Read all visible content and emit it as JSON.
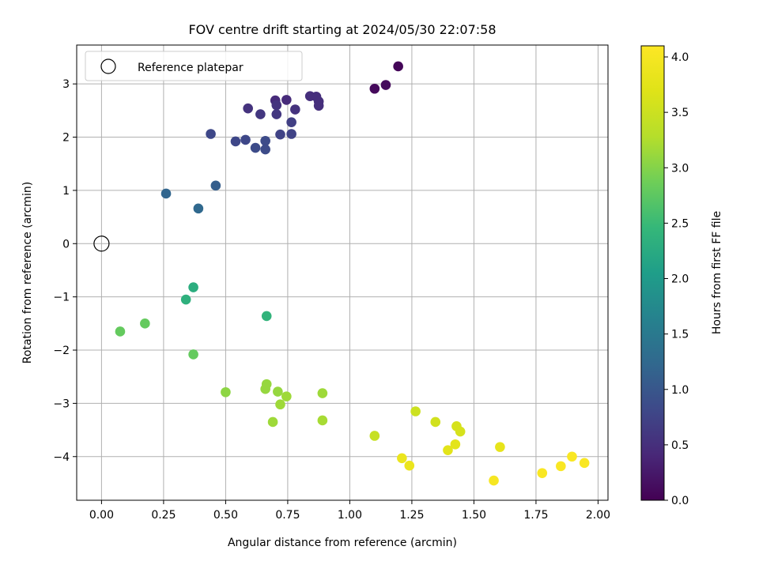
{
  "chart_data": {
    "type": "scatter",
    "title": "FOV centre drift starting at 2024/05/30 22:07:58",
    "xlabel": "Angular distance from reference (arcmin)",
    "ylabel": "Rotation from reference (arcmin)",
    "xlim": [
      -0.1,
      2.04
    ],
    "ylim": [
      -4.82,
      3.73
    ],
    "x_ticks": [
      0.0,
      0.25,
      0.5,
      0.75,
      1.0,
      1.25,
      1.5,
      1.75,
      2.0
    ],
    "x_tick_labels": [
      "0.00",
      "0.25",
      "0.50",
      "0.75",
      "1.00",
      "1.25",
      "1.50",
      "1.75",
      "2.00"
    ],
    "y_ticks": [
      -4,
      -3,
      -2,
      -1,
      0,
      1,
      2,
      3
    ],
    "y_tick_labels": [
      "−4",
      "−3",
      "−2",
      "−1",
      "0",
      "1",
      "2",
      "3"
    ],
    "grid": true,
    "legend": {
      "placement": "upper-left",
      "entries": [
        "Reference platepar"
      ]
    },
    "colorbar": {
      "label": "Hours from first FF file",
      "colormap": "viridis",
      "range": [
        0.0,
        4.1
      ],
      "ticks": [
        0.0,
        0.5,
        1.0,
        1.5,
        2.0,
        2.5,
        3.0,
        3.5,
        4.0
      ],
      "tick_labels": [
        "0.0",
        "0.5",
        "1.0",
        "1.5",
        "2.0",
        "2.5",
        "3.0",
        "3.5",
        "4.0"
      ]
    },
    "reference_point": {
      "name": "Reference platepar",
      "x": 0.0,
      "y": 0.0
    },
    "points": [
      {
        "x": 1.195,
        "y": 3.33,
        "c": 0.05
      },
      {
        "x": 1.145,
        "y": 2.98,
        "c": 0.1
      },
      {
        "x": 1.1,
        "y": 2.91,
        "c": 0.08
      },
      {
        "x": 0.7,
        "y": 2.69,
        "c": 0.45
      },
      {
        "x": 0.745,
        "y": 2.7,
        "c": 0.45
      },
      {
        "x": 0.84,
        "y": 2.77,
        "c": 0.5
      },
      {
        "x": 0.865,
        "y": 2.76,
        "c": 0.5
      },
      {
        "x": 0.875,
        "y": 2.67,
        "c": 0.5
      },
      {
        "x": 0.875,
        "y": 2.59,
        "c": 0.5
      },
      {
        "x": 0.78,
        "y": 2.52,
        "c": 0.55
      },
      {
        "x": 0.705,
        "y": 2.6,
        "c": 0.55
      },
      {
        "x": 0.59,
        "y": 2.54,
        "c": 0.55
      },
      {
        "x": 0.64,
        "y": 2.43,
        "c": 0.6
      },
      {
        "x": 0.705,
        "y": 2.43,
        "c": 0.6
      },
      {
        "x": 0.765,
        "y": 2.28,
        "c": 0.7
      },
      {
        "x": 0.72,
        "y": 2.05,
        "c": 0.75
      },
      {
        "x": 0.765,
        "y": 2.06,
        "c": 0.75
      },
      {
        "x": 0.44,
        "y": 2.06,
        "c": 0.8
      },
      {
        "x": 0.54,
        "y": 1.92,
        "c": 0.8
      },
      {
        "x": 0.58,
        "y": 1.95,
        "c": 0.8
      },
      {
        "x": 0.62,
        "y": 1.8,
        "c": 0.85
      },
      {
        "x": 0.66,
        "y": 1.93,
        "c": 0.85
      },
      {
        "x": 0.66,
        "y": 1.77,
        "c": 0.85
      },
      {
        "x": 0.46,
        "y": 1.09,
        "c": 1.1
      },
      {
        "x": 0.26,
        "y": 0.94,
        "c": 1.2
      },
      {
        "x": 0.39,
        "y": 0.66,
        "c": 1.25
      },
      {
        "x": 0.37,
        "y": -0.82,
        "c": 2.3
      },
      {
        "x": 0.34,
        "y": -1.05,
        "c": 2.35
      },
      {
        "x": 0.665,
        "y": -1.36,
        "c": 2.4
      },
      {
        "x": 0.075,
        "y": -1.65,
        "c": 2.8
      },
      {
        "x": 0.175,
        "y": -1.5,
        "c": 2.8
      },
      {
        "x": 0.37,
        "y": -2.08,
        "c": 2.8
      },
      {
        "x": 0.5,
        "y": -2.79,
        "c": 3.05
      },
      {
        "x": 0.66,
        "y": -2.73,
        "c": 3.1
      },
      {
        "x": 0.665,
        "y": -2.64,
        "c": 3.1
      },
      {
        "x": 0.71,
        "y": -2.78,
        "c": 3.1
      },
      {
        "x": 0.745,
        "y": -2.87,
        "c": 3.15
      },
      {
        "x": 0.72,
        "y": -3.02,
        "c": 3.15
      },
      {
        "x": 0.69,
        "y": -3.35,
        "c": 3.15
      },
      {
        "x": 0.89,
        "y": -2.81,
        "c": 3.15
      },
      {
        "x": 0.89,
        "y": -3.32,
        "c": 3.2
      },
      {
        "x": 1.1,
        "y": -3.61,
        "c": 3.45
      },
      {
        "x": 1.265,
        "y": -3.15,
        "c": 3.5
      },
      {
        "x": 1.345,
        "y": -3.35,
        "c": 3.55
      },
      {
        "x": 1.43,
        "y": -3.43,
        "c": 3.6
      },
      {
        "x": 1.445,
        "y": -3.53,
        "c": 3.6
      },
      {
        "x": 1.425,
        "y": -3.77,
        "c": 3.75
      },
      {
        "x": 1.395,
        "y": -3.88,
        "c": 3.75
      },
      {
        "x": 1.605,
        "y": -3.82,
        "c": 3.8
      },
      {
        "x": 1.21,
        "y": -4.03,
        "c": 3.85
      },
      {
        "x": 1.24,
        "y": -4.17,
        "c": 3.85
      },
      {
        "x": 1.58,
        "y": -4.45,
        "c": 4.0
      },
      {
        "x": 1.775,
        "y": -4.31,
        "c": 4.05
      },
      {
        "x": 1.85,
        "y": -4.18,
        "c": 4.05
      },
      {
        "x": 1.895,
        "y": -4.0,
        "c": 4.05
      },
      {
        "x": 1.945,
        "y": -4.12,
        "c": 4.05
      }
    ]
  }
}
